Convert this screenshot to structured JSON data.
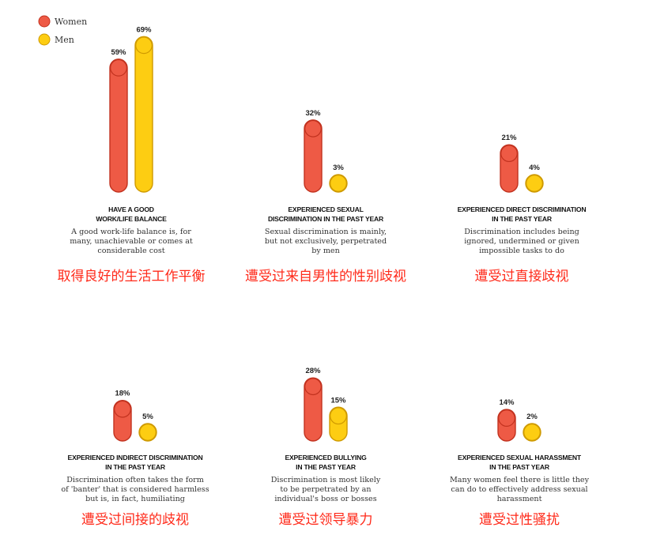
{
  "legend": [
    {
      "name": "Women",
      "color": "#ee5a45",
      "stroke": "#c2321f"
    },
    {
      "name": "Men",
      "color": "#fdcd12",
      "stroke": "#cf9a00"
    }
  ],
  "chart_data": {
    "type": "bar",
    "unit": "%",
    "panels": [
      {
        "title": [
          "HAVE A GOOD",
          "WORK/LIFE BALANCE"
        ],
        "description": [
          "A good work-life balance is, for",
          "many, unachievable or comes at",
          "considerable cost"
        ],
        "translation": "取得良好的生活工作平衡",
        "values": {
          "Women": 59,
          "Men": 69
        },
        "labels": {
          "Women": "59%",
          "Men": "69%"
        }
      },
      {
        "title": [
          "EXPERIENCED SEXUAL",
          "DISCRIMINATION IN THE PAST YEAR"
        ],
        "description": [
          "Sexual discrimination is mainly,",
          "but not exclusively, perpetrated",
          "by men"
        ],
        "translation": "遭受过来自男性的性别歧视",
        "values": {
          "Women": 32,
          "Men": 3
        },
        "labels": {
          "Women": "32%",
          "Men": "3%"
        }
      },
      {
        "title": [
          "EXPERIENCED DIRECT DISCRIMINATION",
          "IN THE PAST YEAR"
        ],
        "description": [
          "Discrimination includes being",
          "ignored, undermined or given",
          "impossible tasks to do"
        ],
        "translation": "遭受过直接歧视",
        "values": {
          "Women": 21,
          "Men": 4
        },
        "labels": {
          "Women": "21%",
          "Men": "4%"
        }
      },
      {
        "title": [
          "EXPERIENCED INDIRECT DISCRIMINATION",
          "IN THE PAST YEAR"
        ],
        "description": [
          "Discrimination often takes the form",
          "of 'banter' that is considered harmless",
          "but is, in fact, humiliating"
        ],
        "translation": "遭受过间接的歧视",
        "values": {
          "Women": 18,
          "Men": 5
        },
        "labels": {
          "Women": "18%",
          "Men": "5%"
        }
      },
      {
        "title": [
          "EXPERIENCED BULLYING",
          "IN THE PAST YEAR"
        ],
        "description": [
          "Discrimination is most likely",
          "to be perpetrated by an",
          "individual's boss or bosses"
        ],
        "translation": "遭受过领导暴力",
        "values": {
          "Women": 28,
          "Men": 15
        },
        "labels": {
          "Women": "28%",
          "Men": "15%"
        }
      },
      {
        "title": [
          "EXPERIENCED SEXUAL HARASSMENT",
          "IN THE PAST YEAR"
        ],
        "description": [
          "Many women feel there is little they",
          "can do to effectively address sexual",
          "harassment"
        ],
        "translation": "遭受过性骚扰",
        "values": {
          "Women": 14,
          "Men": 2
        },
        "labels": {
          "Women": "14%",
          "Men": "2%"
        }
      }
    ]
  }
}
